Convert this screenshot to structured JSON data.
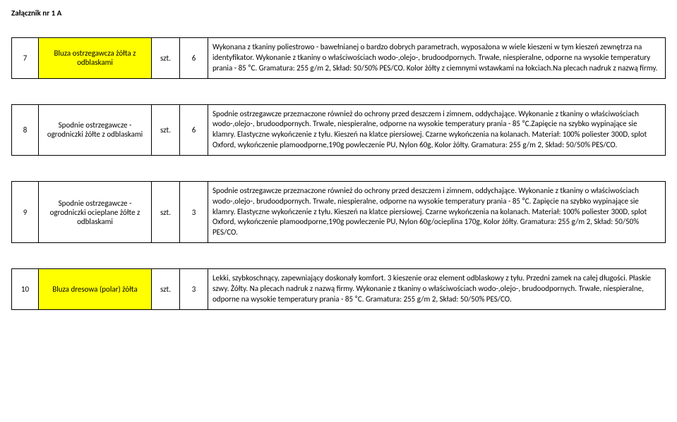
{
  "header": "Załącznik nr 1 A",
  "columns": {
    "unit_label": "szt."
  },
  "rows": [
    {
      "num": "7",
      "name": "Bluza ostrzegawcza żółta z odblaskami",
      "yellow": true,
      "unit": "szt.",
      "qty": "6",
      "desc": "Wykonana z tkaniny poliestrowo - bawełnianej o bardzo dobrych parametrach, wyposażona w wiele kieszeni w tym kieszeń zewnętrza na identyfikator. Wykonanie z tkaniny o właściwościach wodo-,olejo-, brudoodpornych. Trwałe, niespieralne, odporne na wysokie temperatury prania - 85 ⁰C. Gramatura: 255 g/m 2, Skład: 50/50% PES/CO. Kolor żółty z ciemnymi wstawkami na łokciach.Na plecach nadruk z nazwą firmy."
    },
    {
      "num": "8",
      "name": "Spodnie ostrzegawcze - ogrodniczki żółte z odblaskami",
      "yellow": false,
      "unit": "szt.",
      "qty": "6",
      "desc": "Spodnie ostrzegawcze przeznaczone również do ochrony przed deszczem i zimnem, oddychające. Wykonanie z tkaniny o właściwościach wodo-,olejo-, brudoodpornych. Trwałe, niespieralne, odporne na wysokie temperatury prania - 85 ⁰C.Zapięcie na szybko wypinające sie klamry. Elastyczne wykończenie z tyłu. Kieszeń na klatce piersiowej. Czarne wykończenia na kolanach. Materiał: 100% poliester 300D, splot Oxford, wykończenie plamoodporne,190g powleczenie PU, Nylon 60g, Kolor żółty. Gramatura: 255 g/m 2, Skład: 50/50% PES/CO."
    },
    {
      "num": "9",
      "name": "Spodnie ostrzegawcze - ogrodniczki ocieplane żółte z odblaskami",
      "yellow": false,
      "unit": "szt.",
      "qty": "3",
      "desc": "Spodnie ostrzegawcze przeznaczone również do ochrony przed deszczem i zimnem, oddychające. Wykonanie z tkaniny o właściwościach wodo-,olejo-, brudoodpornych. Trwałe, niespieralne, odporne na wysokie temperatury prania - 85 ⁰C. Zapięcie na szybko wypinające sie klamry. Elastyczne wykończenie z tyłu. Kieszeń na klatce piersiowej. Czarne wykończenia na kolanach. Materiał: 100% poliester 300D, splot Oxford, wykończenie plamoodporne,190g powleczenie PU, Nylon 60g/ocieplina 170g, Kolor żółty. Gramatura: 255 g/m 2, Skład: 50/50% PES/CO."
    },
    {
      "num": "10",
      "name": "Bluza dresowa (polar) żółta",
      "yellow": true,
      "unit": "szt.",
      "qty": "3",
      "desc": "Lekki, szybkoschnący, zapewniający doskonały komfort. 3 kieszenie oraz element odblaskowy z tyłu. Przedni zamek na całej długości. Płaskie szwy. Żółty. Na plecach nadruk z nazwą firmy. Wykonanie z tkaniny o właściwościach wodo-,olejo-, brudoodpornych. Trwałe, niespieralne, odporne na wysokie temperatury prania - 85 ⁰C. Gramatura: 255 g/m 2, Skład: 50/50% PES/CO."
    }
  ]
}
